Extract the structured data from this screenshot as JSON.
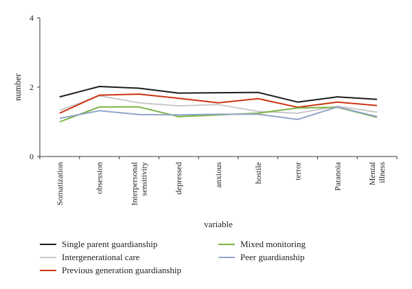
{
  "chart_data": {
    "type": "line",
    "title": "",
    "xlabel": "variable",
    "ylabel": "number",
    "ylim": [
      0,
      4
    ],
    "yticks": [
      0,
      2,
      4
    ],
    "grid": false,
    "legend_position": "bottom",
    "categories": [
      [
        "Somatization"
      ],
      [
        "obsession"
      ],
      [
        "Interpersonal",
        "sensitivity"
      ],
      [
        "depressed"
      ],
      [
        "anxious"
      ],
      [
        "hostile"
      ],
      [
        "terror"
      ],
      [
        "Paranoia"
      ],
      [
        "Mental",
        "illness"
      ]
    ],
    "series": [
      {
        "name": "Single parent guardianship",
        "color": "#1a1a1a",
        "values": [
          1.72,
          2.02,
          1.97,
          1.83,
          1.84,
          1.85,
          1.57,
          1.72,
          1.65
        ]
      },
      {
        "name": "Intergenerational care",
        "color": "#c8c8c8",
        "values": [
          1.33,
          1.75,
          1.55,
          1.46,
          1.5,
          1.3,
          1.25,
          1.45,
          1.28
        ]
      },
      {
        "name": "Previous generation guardianship",
        "color": "#cc3311",
        "values": [
          1.25,
          1.77,
          1.8,
          1.68,
          1.55,
          1.67,
          1.42,
          1.57,
          1.47
        ]
      },
      {
        "name": "Mixed monitoring",
        "color": "#7cb342",
        "values": [
          1.0,
          1.43,
          1.43,
          1.15,
          1.2,
          1.25,
          1.4,
          1.42,
          1.13
        ]
      },
      {
        "name": "Peer guardianship",
        "color": "#8fa5c9",
        "values": [
          1.1,
          1.32,
          1.21,
          1.2,
          1.22,
          1.22,
          1.07,
          1.43,
          1.15
        ]
      }
    ]
  }
}
